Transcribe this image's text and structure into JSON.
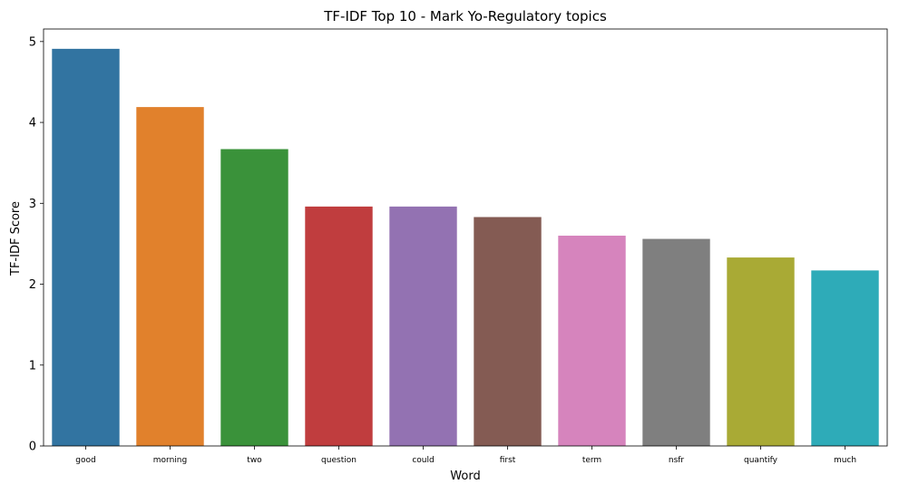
{
  "chart_data": {
    "type": "bar",
    "title": "TF-IDF Top 10 - Mark Yo-Regulatory topics",
    "xlabel": "Word",
    "ylabel": "TF-IDF Score",
    "categories": [
      "good",
      "morning",
      "two",
      "question",
      "could",
      "first",
      "term",
      "nsfr",
      "quantify",
      "much"
    ],
    "values": [
      4.91,
      4.19,
      3.67,
      2.96,
      2.96,
      2.83,
      2.6,
      2.56,
      2.33,
      2.17
    ],
    "colors": [
      "#3274a1",
      "#e1812c",
      "#3a923a",
      "#c03d3e",
      "#9372b2",
      "#845b53",
      "#d684bd",
      "#7f7f7f",
      "#a9aa35",
      "#2eabb8"
    ],
    "ylim": [
      0,
      5.155
    ],
    "yticks": [
      0,
      1,
      2,
      3,
      4,
      5
    ],
    "grid": false,
    "legend": "none"
  }
}
